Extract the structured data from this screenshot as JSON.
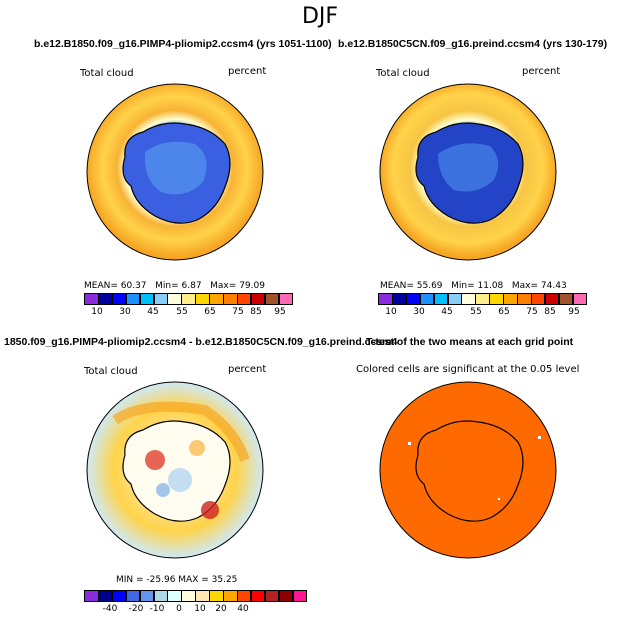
{
  "title": "DJF",
  "panels": [
    {
      "title": "b.e12.B1850.f09_g16.PIMP4-pliomip2.ccsm4 (yrs 1051-1100)",
      "variable": "Total cloud",
      "units": "percent",
      "stats": {
        "mean_label": "MEAN=",
        "mean": "60.37",
        "min_label": "Min=",
        "min": "6.87",
        "max_label": "Max=",
        "max": "79.09"
      },
      "colorbar_labels": [
        "10",
        "30",
        "45",
        "55",
        "65",
        "75",
        "85",
        "95"
      ]
    },
    {
      "title": "b.e12.B1850C5CN.f09_g16.preind.ccsm4 (yrs 130-179)",
      "variable": "Total cloud",
      "units": "percent",
      "stats": {
        "mean_label": "MEAN=",
        "mean": "55.69",
        "min_label": "Min=",
        "min": "11.08",
        "max_label": "Max=",
        "max": "74.43"
      },
      "colorbar_labels": [
        "10",
        "30",
        "45",
        "55",
        "65",
        "75",
        "85",
        "95"
      ]
    },
    {
      "title": "1850.f09_g16.PIMP4-pliomip2.ccsm4 - b.e12.B1850C5CN.f09_g16.preind.ccsm4",
      "variable": "Total cloud",
      "units": "percent",
      "stats": {
        "text": "MIN = -25.96  MAX =  35.25"
      },
      "colorbar_labels": [
        "-40",
        "-20",
        "-10",
        "0",
        "10",
        "20",
        "40"
      ]
    },
    {
      "title": "T-test of the two means at each grid point",
      "subtitle": "Colored cells are significant at the 0.05 level"
    }
  ],
  "colors": {
    "abs_scale": [
      "#8a2be2",
      "#0000a0",
      "#0000ff",
      "#1e90ff",
      "#00bfff",
      "#87cefa",
      "#ffffe0",
      "#ffec8b",
      "#ffd700",
      "#ffa500",
      "#ff7f00",
      "#ff4500",
      "#cd0000",
      "#a0522d",
      "#ff69b4"
    ],
    "diff_scale": [
      "#8a2be2",
      "#00008b",
      "#0000ff",
      "#4169e1",
      "#6495ed",
      "#add8e6",
      "#e0ffff",
      "#ffffe0",
      "#ffe4b5",
      "#ffd700",
      "#ffa500",
      "#ff4500",
      "#ff0000",
      "#b22222",
      "#8b0000",
      "#ff1493"
    ],
    "ocean_cloud_1": "#f8b335",
    "ocean_cloud_2": "#f7c544",
    "antarctic": "#3a5fe0",
    "significance": "#ff6a00"
  }
}
